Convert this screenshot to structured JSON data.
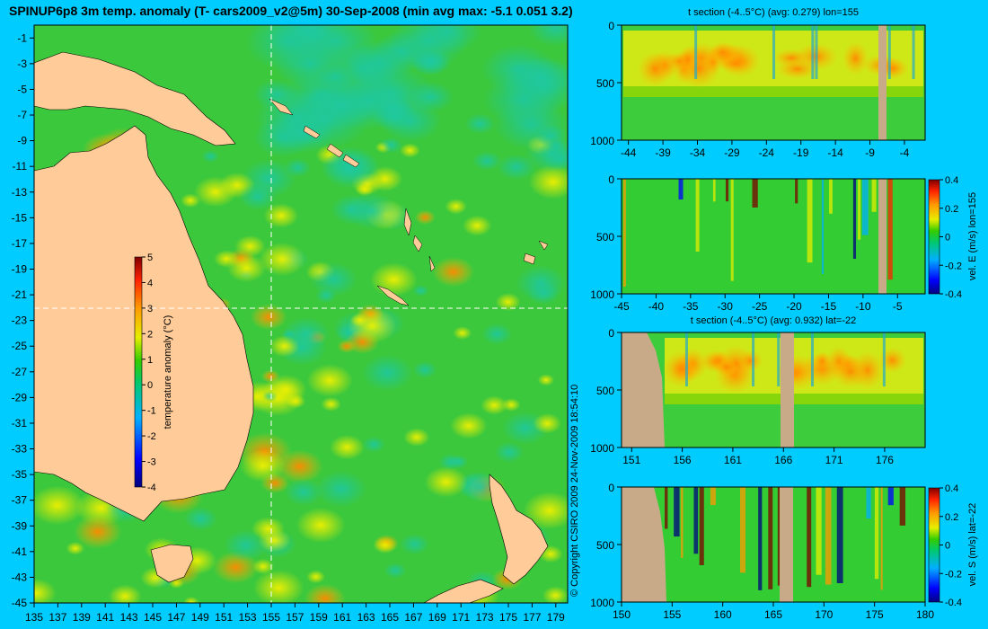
{
  "title": "SPINUP6p8 3m temp. anomaly (T- cars2009_v2@5m) 30-Sep-2008 (min avg max: -5.1 0.051 3.2)",
  "copyright": "© Copyright CSIRO 2009   24-Nov-2009 18:54:10",
  "colors": {
    "background": "#00ccff",
    "land": "#ffcc99",
    "section_land": "#c8aa88"
  },
  "chart_data": [
    {
      "type": "heatmap",
      "name": "map",
      "title": "SPINUP6p8 3m temp. anomaly (T- cars2009_v2@5m) 30-Sep-2008 (min avg max: -5.1 0.051 3.2)",
      "x_ticks": [
        135,
        137,
        139,
        141,
        143,
        145,
        147,
        149,
        151,
        153,
        155,
        157,
        159,
        161,
        163,
        165,
        167,
        169,
        171,
        173,
        175,
        177,
        179
      ],
      "y_ticks": [
        -1,
        -3,
        -5,
        -7,
        -9,
        -11,
        -13,
        -15,
        -17,
        -19,
        -21,
        -23,
        -25,
        -27,
        -29,
        -31,
        -33,
        -35,
        -37,
        -39,
        -41,
        -43,
        -45
      ],
      "xlim": [
        135,
        180
      ],
      "ylim": [
        -45,
        0
      ],
      "colorbar": {
        "label": "temperature anomaly (°C)",
        "ticks": [
          5,
          4,
          3,
          2,
          1,
          0,
          -1,
          -2,
          -3,
          -4
        ],
        "range": [
          -4,
          5
        ]
      },
      "crosshair": {
        "lon": 155,
        "lat": -22
      }
    },
    {
      "type": "heatmap",
      "name": "t-section-lon155",
      "title": "t section (-4..5°C) (avg: 0.279) lon=155",
      "x_ticks": [
        -44,
        -39,
        -34,
        -29,
        -24,
        -19,
        -14,
        -9,
        -4
      ],
      "y_ticks": [
        0,
        500,
        1000
      ],
      "xlim": [
        -45,
        -1
      ],
      "ylim": [
        1000,
        0
      ]
    },
    {
      "type": "heatmap",
      "name": "vel-e-lon155",
      "x_ticks": [
        -45,
        -40,
        -35,
        -30,
        -25,
        -20,
        -15,
        -10,
        -5
      ],
      "y_ticks": [
        0,
        500,
        1000
      ],
      "xlim": [
        -45,
        -1
      ],
      "ylim": [
        1000,
        0
      ],
      "colorbar": {
        "label": "vel. E (m/s) lon=155",
        "ticks": [
          0.4,
          0.2,
          0,
          -0.2,
          -0.4
        ],
        "range": [
          -0.4,
          0.4
        ]
      }
    },
    {
      "type": "heatmap",
      "name": "t-section-lat-22",
      "title": "t section (-4..5°C) (avg: 0.932) lat=-22",
      "x_ticks": [
        151,
        156,
        161,
        166,
        171,
        176
      ],
      "y_ticks": [
        0,
        500,
        1000
      ],
      "xlim": [
        150,
        180
      ],
      "ylim": [
        1000,
        0
      ]
    },
    {
      "type": "heatmap",
      "name": "vel-s-lat-22",
      "x_ticks": [
        150,
        155,
        160,
        165,
        170,
        175,
        180
      ],
      "y_ticks": [
        0,
        500,
        1000
      ],
      "xlim": [
        150,
        180
      ],
      "ylim": [
        1000,
        0
      ],
      "colorbar": {
        "label": "vel. S (m/s) lat=-22",
        "ticks": [
          0.4,
          0.2,
          0,
          -0.2,
          -0.4
        ],
        "range": [
          -0.4,
          0.4
        ]
      }
    }
  ]
}
